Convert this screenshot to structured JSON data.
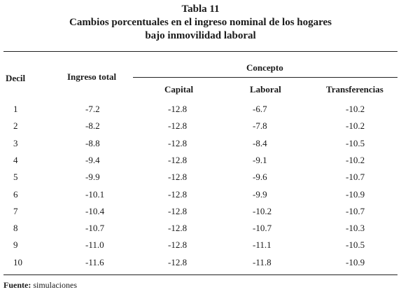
{
  "title": {
    "line1": "Tabla 11",
    "line2": "Cambios porcentuales en el ingreso nominal de los hogares",
    "line3": "bajo inmovilidad laboral"
  },
  "headers": {
    "decil": "Decil",
    "ingreso_total": "Ingreso total",
    "concepto": "Concepto",
    "capital": "Capital",
    "laboral": "Laboral",
    "transferencias": "Transferencias"
  },
  "rows": [
    {
      "decil": "1",
      "ingreso_total": "-7.2",
      "capital": "-12.8",
      "laboral": "-6.7",
      "transferencias": "-10.2"
    },
    {
      "decil": "2",
      "ingreso_total": "-8.2",
      "capital": "-12.8",
      "laboral": "-7.8",
      "transferencias": "-10.2"
    },
    {
      "decil": "3",
      "ingreso_total": "-8.8",
      "capital": "-12.8",
      "laboral": "-8.4",
      "transferencias": "-10.5"
    },
    {
      "decil": "4",
      "ingreso_total": "-9.4",
      "capital": "-12.8",
      "laboral": "-9.1",
      "transferencias": "-10.2"
    },
    {
      "decil": "5",
      "ingreso_total": "-9.9",
      "capital": "-12.8",
      "laboral": "-9.6",
      "transferencias": "-10.7"
    },
    {
      "decil": "6",
      "ingreso_total": "-10.1",
      "capital": "-12.8",
      "laboral": "-9.9",
      "transferencias": "-10.9"
    },
    {
      "decil": "7",
      "ingreso_total": "-10.4",
      "capital": "-12.8",
      "laboral": "-10.2",
      "transferencias": "-10.7"
    },
    {
      "decil": "8",
      "ingreso_total": "-10.7",
      "capital": "-12.8",
      "laboral": "-10.7",
      "transferencias": "-10.3"
    },
    {
      "decil": "9",
      "ingreso_total": "-11.0",
      "capital": "-12.8",
      "laboral": "-11.1",
      "transferencias": "-10.5"
    },
    {
      "decil": "10",
      "ingreso_total": "-11.6",
      "capital": "-12.8",
      "laboral": "-11.8",
      "transferencias": "-10.9"
    }
  ],
  "source": {
    "label": "Fuente:",
    "text": "simulaciones"
  }
}
